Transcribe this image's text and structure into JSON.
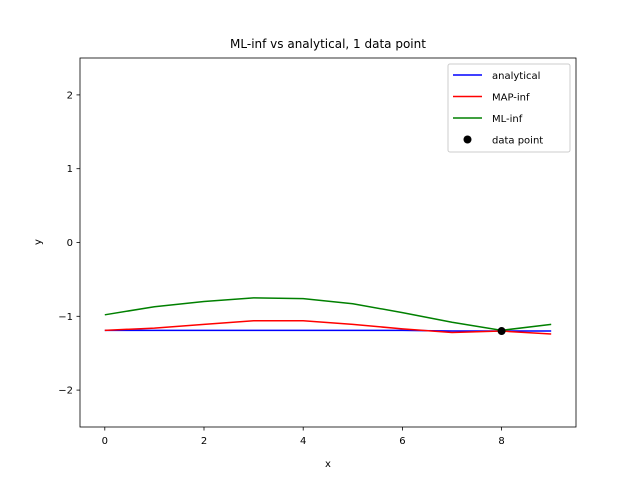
{
  "chart_data": {
    "type": "line",
    "title": "ML-inf vs analytical, 1 data point",
    "xlabel": "x",
    "ylabel": "y",
    "xlim": [
      -0.5,
      9.5
    ],
    "ylim": [
      -2.5,
      2.5
    ],
    "xticks": [
      0,
      2,
      4,
      6,
      8
    ],
    "yticks": [
      -2,
      -1,
      0,
      1,
      2
    ],
    "xtick_labels": [
      "0",
      "2",
      "4",
      "6",
      "8"
    ],
    "ytick_labels": [
      "−2",
      "−1",
      "0",
      "1",
      "2"
    ],
    "grid": false,
    "legend_position": "upper right",
    "series": [
      {
        "name": "analytical",
        "color": "#0000ff",
        "x": [
          0,
          1,
          2,
          3,
          4,
          5,
          6,
          7,
          8,
          9
        ],
        "y": [
          -1.19,
          -1.19,
          -1.19,
          -1.19,
          -1.19,
          -1.19,
          -1.19,
          -1.2,
          -1.2,
          -1.2
        ]
      },
      {
        "name": "MAP-inf",
        "color": "#ff0000",
        "x": [
          0,
          1,
          2,
          3,
          4,
          5,
          6,
          7,
          8,
          9
        ],
        "y": [
          -1.19,
          -1.16,
          -1.11,
          -1.06,
          -1.06,
          -1.11,
          -1.17,
          -1.22,
          -1.2,
          -1.24
        ]
      },
      {
        "name": "ML-inf",
        "color": "#008000",
        "x": [
          0,
          1,
          2,
          3,
          4,
          5,
          6,
          7,
          8,
          9
        ],
        "y": [
          -0.98,
          -0.87,
          -0.8,
          -0.75,
          -0.76,
          -0.83,
          -0.95,
          -1.08,
          -1.19,
          -1.11
        ]
      }
    ],
    "points": [
      {
        "name": "data point",
        "color": "#000000",
        "x": 8,
        "y": -1.2
      }
    ]
  }
}
